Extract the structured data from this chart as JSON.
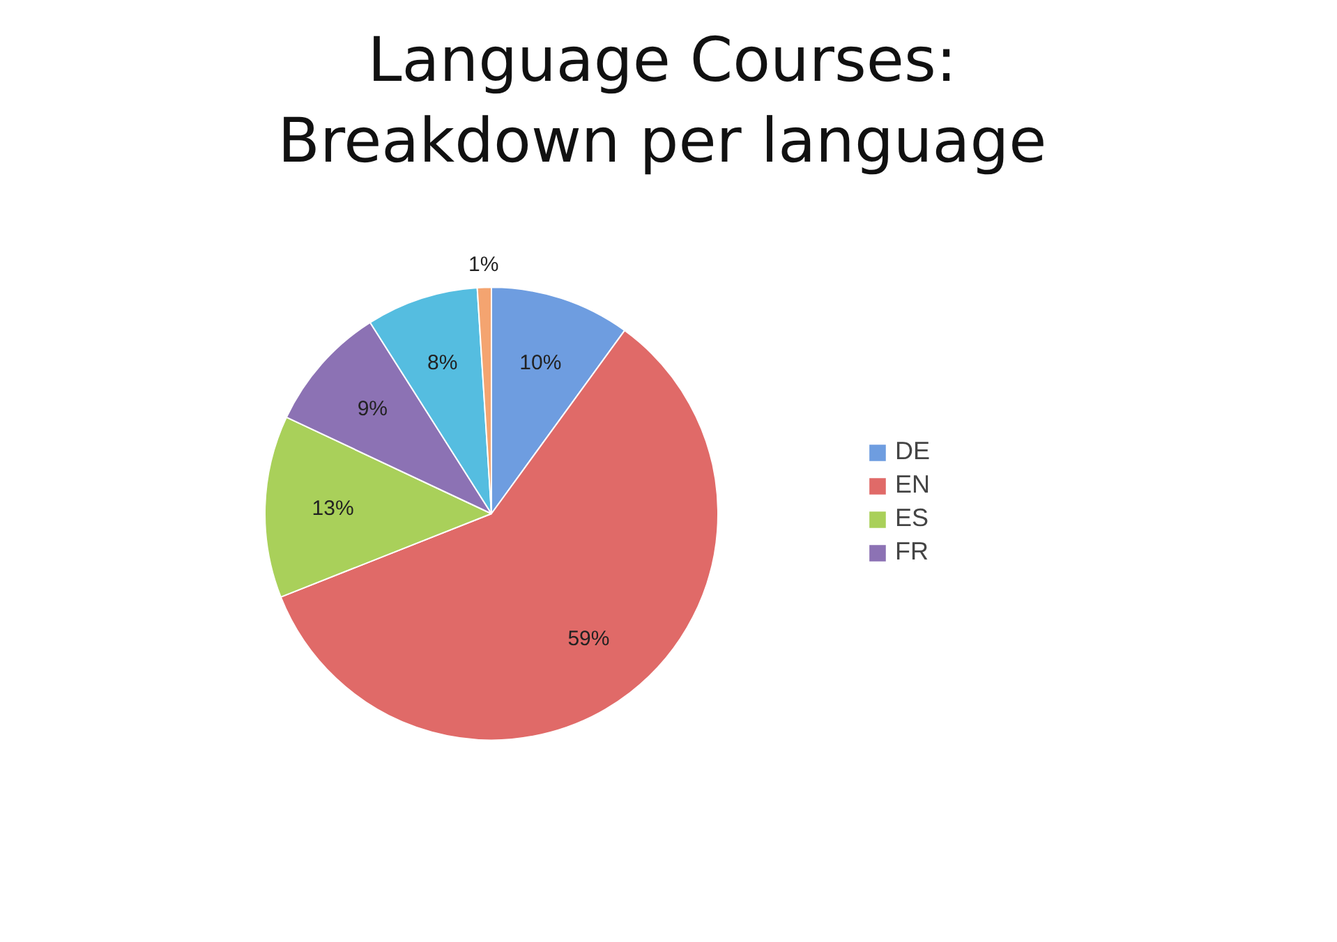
{
  "chart_data": {
    "type": "pie",
    "title": "Language Courses: Breakdown per language",
    "categories": [
      "DE",
      "EN",
      "ES",
      "FR",
      null,
      null
    ],
    "values": [
      10,
      59,
      13,
      9,
      8,
      1
    ],
    "colors": [
      "#6e9de0",
      "#e06a68",
      "#a9d05a",
      "#8c72b4",
      "#55bde0",
      "#f4a470"
    ],
    "value_labels": [
      "10%",
      "59%",
      "13%",
      "9%",
      "8%",
      "1%"
    ],
    "legend": "right"
  }
}
